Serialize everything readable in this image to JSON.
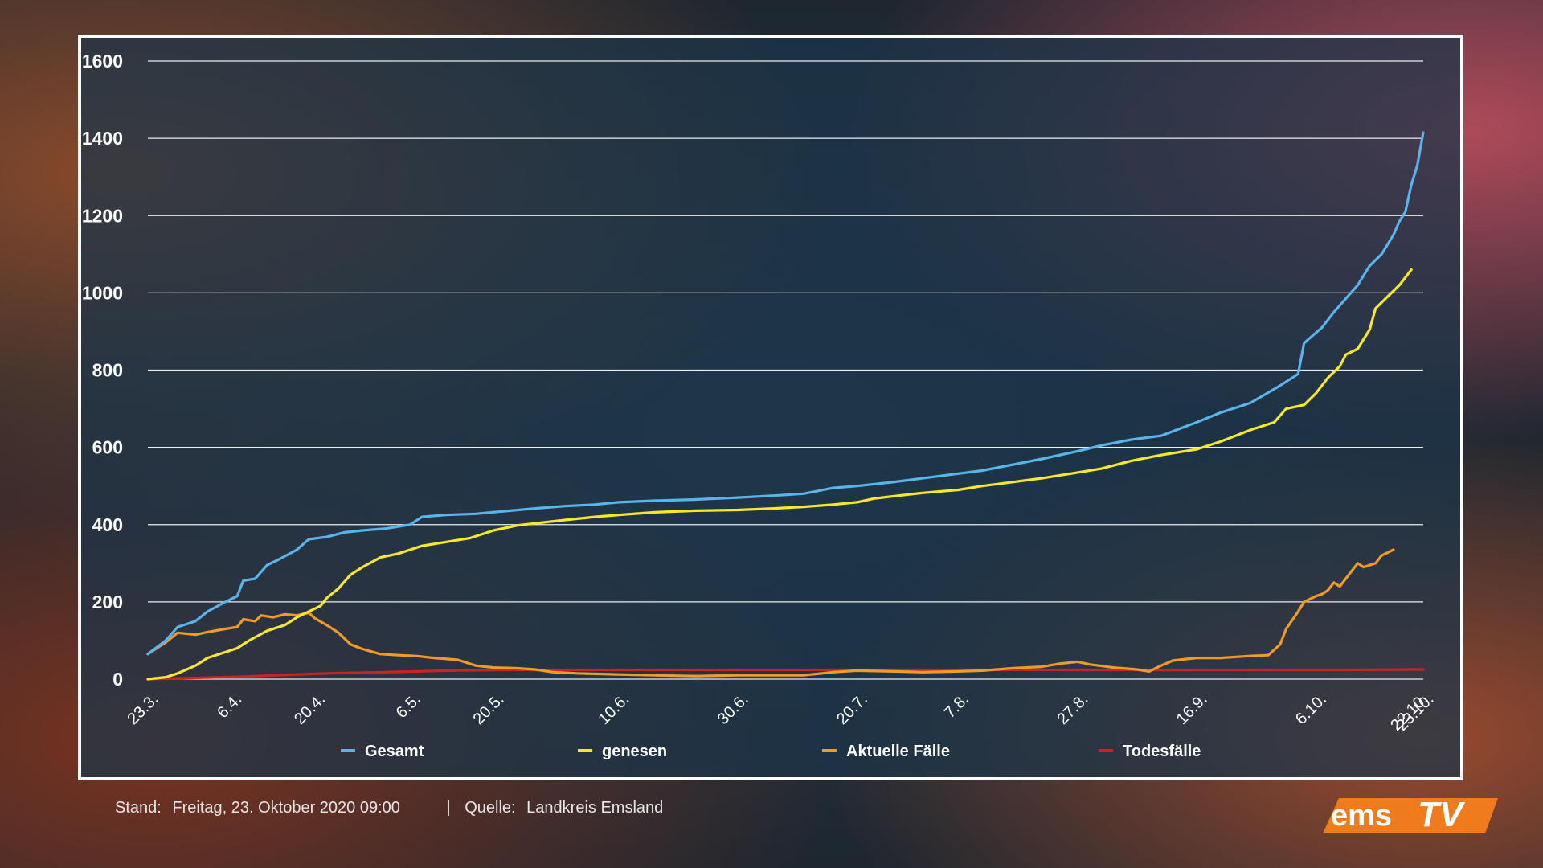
{
  "footer": {
    "stand_label": "Stand:",
    "stand_value": "Freitag, 23. Oktober 2020 09:00",
    "separator": "|",
    "quelle_label": "Quelle:",
    "quelle_value": "Landkreis Emsland"
  },
  "logo": {
    "part1": "ems",
    "part2": "TV",
    "colors": {
      "bg": "#f07b1c",
      "text": "#ffffff"
    }
  },
  "chart_data": {
    "type": "line",
    "ylim": [
      0,
      1600
    ],
    "y_ticks": [
      0,
      200,
      400,
      600,
      800,
      1000,
      1200,
      1400,
      1600
    ],
    "x_domain": [
      0,
      214
    ],
    "x_ticks": [
      {
        "day": 0,
        "label": "23.3."
      },
      {
        "day": 14,
        "label": "6.4."
      },
      {
        "day": 28,
        "label": "20.4."
      },
      {
        "day": 44,
        "label": "6.5."
      },
      {
        "day": 58,
        "label": "20.5."
      },
      {
        "day": 79,
        "label": "10.6."
      },
      {
        "day": 99,
        "label": "30.6."
      },
      {
        "day": 119,
        "label": "20.7."
      },
      {
        "day": 136,
        "label": "7.8."
      },
      {
        "day": 156,
        "label": "27.8."
      },
      {
        "day": 176,
        "label": "16.9."
      },
      {
        "day": 196,
        "label": "6.10."
      },
      {
        "day": 213,
        "label": "22.10."
      },
      {
        "day": 214,
        "label": "23.10."
      }
    ],
    "grid": true,
    "legend_position": "bottom",
    "series": [
      {
        "name": "Gesamt",
        "color": "#5ab4ec",
        "points": [
          [
            0,
            65
          ],
          [
            3,
            100
          ],
          [
            5,
            135
          ],
          [
            8,
            150
          ],
          [
            10,
            175
          ],
          [
            13,
            200
          ],
          [
            15,
            215
          ],
          [
            16,
            255
          ],
          [
            18,
            260
          ],
          [
            20,
            295
          ],
          [
            22,
            310
          ],
          [
            25,
            335
          ],
          [
            27,
            362
          ],
          [
            30,
            368
          ],
          [
            33,
            380
          ],
          [
            36,
            385
          ],
          [
            40,
            390
          ],
          [
            44,
            400
          ],
          [
            46,
            420
          ],
          [
            50,
            425
          ],
          [
            55,
            428
          ],
          [
            60,
            435
          ],
          [
            65,
            442
          ],
          [
            70,
            448
          ],
          [
            75,
            452
          ],
          [
            79,
            458
          ],
          [
            85,
            462
          ],
          [
            92,
            465
          ],
          [
            99,
            470
          ],
          [
            105,
            475
          ],
          [
            110,
            480
          ],
          [
            115,
            495
          ],
          [
            119,
            500
          ],
          [
            125,
            510
          ],
          [
            130,
            520
          ],
          [
            136,
            532
          ],
          [
            140,
            540
          ],
          [
            145,
            555
          ],
          [
            150,
            570
          ],
          [
            156,
            590
          ],
          [
            160,
            605
          ],
          [
            165,
            620
          ],
          [
            170,
            630
          ],
          [
            176,
            665
          ],
          [
            180,
            690
          ],
          [
            185,
            715
          ],
          [
            190,
            760
          ],
          [
            193,
            790
          ],
          [
            194,
            870
          ],
          [
            197,
            910
          ],
          [
            199,
            950
          ],
          [
            201,
            985
          ],
          [
            203,
            1020
          ],
          [
            205,
            1070
          ],
          [
            207,
            1100
          ],
          [
            209,
            1150
          ],
          [
            210,
            1185
          ],
          [
            211,
            1210
          ],
          [
            212,
            1280
          ],
          [
            213,
            1330
          ],
          [
            214,
            1415
          ]
        ]
      },
      {
        "name": "genesen",
        "color": "#f7e82a",
        "points": [
          [
            0,
            0
          ],
          [
            3,
            5
          ],
          [
            5,
            15
          ],
          [
            8,
            35
          ],
          [
            10,
            55
          ],
          [
            13,
            70
          ],
          [
            15,
            80
          ],
          [
            17,
            100
          ],
          [
            20,
            125
          ],
          [
            23,
            140
          ],
          [
            25,
            160
          ],
          [
            27,
            175
          ],
          [
            29,
            190
          ],
          [
            30,
            210
          ],
          [
            32,
            235
          ],
          [
            34,
            270
          ],
          [
            36,
            290
          ],
          [
            39,
            315
          ],
          [
            42,
            325
          ],
          [
            44,
            335
          ],
          [
            46,
            345
          ],
          [
            50,
            355
          ],
          [
            54,
            365
          ],
          [
            58,
            385
          ],
          [
            62,
            398
          ],
          [
            66,
            405
          ],
          [
            70,
            412
          ],
          [
            75,
            420
          ],
          [
            79,
            425
          ],
          [
            85,
            432
          ],
          [
            92,
            436
          ],
          [
            99,
            438
          ],
          [
            105,
            442
          ],
          [
            110,
            446
          ],
          [
            115,
            452
          ],
          [
            119,
            458
          ],
          [
            122,
            468
          ],
          [
            126,
            475
          ],
          [
            130,
            482
          ],
          [
            136,
            490
          ],
          [
            140,
            500
          ],
          [
            145,
            510
          ],
          [
            150,
            520
          ],
          [
            156,
            535
          ],
          [
            160,
            545
          ],
          [
            165,
            565
          ],
          [
            170,
            580
          ],
          [
            176,
            595
          ],
          [
            180,
            615
          ],
          [
            185,
            645
          ],
          [
            189,
            665
          ],
          [
            191,
            700
          ],
          [
            194,
            710
          ],
          [
            196,
            740
          ],
          [
            198,
            780
          ],
          [
            200,
            810
          ],
          [
            201,
            840
          ],
          [
            203,
            855
          ],
          [
            205,
            905
          ],
          [
            206,
            960
          ],
          [
            208,
            990
          ],
          [
            210,
            1020
          ],
          [
            211,
            1040
          ],
          [
            212,
            1060
          ]
        ]
      },
      {
        "name": "Aktuelle Fälle",
        "color": "#f09a2a",
        "points": [
          [
            0,
            65
          ],
          [
            3,
            95
          ],
          [
            5,
            120
          ],
          [
            8,
            115
          ],
          [
            10,
            122
          ],
          [
            13,
            130
          ],
          [
            15,
            135
          ],
          [
            16,
            155
          ],
          [
            18,
            150
          ],
          [
            19,
            165
          ],
          [
            21,
            160
          ],
          [
            23,
            168
          ],
          [
            25,
            165
          ],
          [
            27,
            172
          ],
          [
            28,
            158
          ],
          [
            30,
            140
          ],
          [
            32,
            120
          ],
          [
            34,
            90
          ],
          [
            36,
            78
          ],
          [
            39,
            65
          ],
          [
            42,
            62
          ],
          [
            45,
            60
          ],
          [
            48,
            55
          ],
          [
            52,
            50
          ],
          [
            55,
            35
          ],
          [
            58,
            30
          ],
          [
            62,
            28
          ],
          [
            65,
            25
          ],
          [
            68,
            18
          ],
          [
            72,
            15
          ],
          [
            79,
            12
          ],
          [
            85,
            10
          ],
          [
            92,
            8
          ],
          [
            99,
            10
          ],
          [
            105,
            10
          ],
          [
            110,
            10
          ],
          [
            115,
            18
          ],
          [
            119,
            22
          ],
          [
            125,
            20
          ],
          [
            130,
            18
          ],
          [
            136,
            20
          ],
          [
            140,
            22
          ],
          [
            145,
            28
          ],
          [
            150,
            32
          ],
          [
            153,
            40
          ],
          [
            156,
            45
          ],
          [
            158,
            38
          ],
          [
            162,
            30
          ],
          [
            166,
            25
          ],
          [
            168,
            20
          ],
          [
            170,
            35
          ],
          [
            172,
            48
          ],
          [
            176,
            55
          ],
          [
            180,
            55
          ],
          [
            185,
            60
          ],
          [
            188,
            62
          ],
          [
            190,
            90
          ],
          [
            191,
            130
          ],
          [
            193,
            175
          ],
          [
            194,
            200
          ],
          [
            196,
            215
          ],
          [
            197,
            220
          ],
          [
            198,
            230
          ],
          [
            199,
            250
          ],
          [
            200,
            240
          ],
          [
            201,
            260
          ],
          [
            202,
            280
          ],
          [
            203,
            300
          ],
          [
            204,
            290
          ],
          [
            205,
            295
          ],
          [
            206,
            300
          ],
          [
            207,
            320
          ],
          [
            209,
            335
          ]
        ]
      },
      {
        "name": "Todesfälle",
        "color": "#cc2222",
        "points": [
          [
            0,
            0
          ],
          [
            5,
            2
          ],
          [
            10,
            4
          ],
          [
            15,
            6
          ],
          [
            20,
            9
          ],
          [
            25,
            12
          ],
          [
            30,
            15
          ],
          [
            40,
            18
          ],
          [
            50,
            22
          ],
          [
            60,
            24
          ],
          [
            80,
            24
          ],
          [
            100,
            24
          ],
          [
            120,
            24
          ],
          [
            140,
            24
          ],
          [
            160,
            24
          ],
          [
            180,
            24
          ],
          [
            200,
            24
          ],
          [
            214,
            25
          ]
        ]
      }
    ]
  }
}
